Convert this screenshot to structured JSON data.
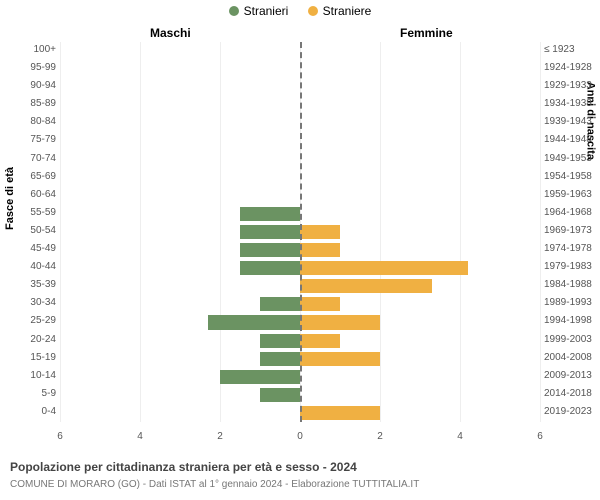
{
  "chart": {
    "type": "population-pyramid",
    "background_color": "#ffffff",
    "grid_color": "#eeeeee",
    "center_line_color": "#777777",
    "label_fontsize": 10,
    "axis_title_fontsize": 11
  },
  "legend": {
    "items": [
      {
        "label": "Stranieri",
        "color": "#6b9362"
      },
      {
        "label": "Straniere",
        "color": "#f0b042"
      }
    ]
  },
  "titles": {
    "left_side": "Maschi",
    "right_side": "Femmine",
    "y_left": "Fasce di età",
    "y_right": "Anni di nascita"
  },
  "axis": {
    "xmax": 6,
    "xtick_step": 2,
    "xticks_left": [
      6,
      4,
      2,
      0
    ],
    "xticks_right": [
      0,
      2,
      4,
      6
    ]
  },
  "rows": [
    {
      "age": "100+",
      "birth": "≤ 1923",
      "male": 0,
      "female": 0
    },
    {
      "age": "95-99",
      "birth": "1924-1928",
      "male": 0,
      "female": 0
    },
    {
      "age": "90-94",
      "birth": "1929-1933",
      "male": 0,
      "female": 0
    },
    {
      "age": "85-89",
      "birth": "1934-1938",
      "male": 0,
      "female": 0
    },
    {
      "age": "80-84",
      "birth": "1939-1943",
      "male": 0,
      "female": 0
    },
    {
      "age": "75-79",
      "birth": "1944-1948",
      "male": 0,
      "female": 0
    },
    {
      "age": "70-74",
      "birth": "1949-1953",
      "male": 0,
      "female": 0
    },
    {
      "age": "65-69",
      "birth": "1954-1958",
      "male": 0,
      "female": 0
    },
    {
      "age": "60-64",
      "birth": "1959-1963",
      "male": 0,
      "female": 0
    },
    {
      "age": "55-59",
      "birth": "1964-1968",
      "male": 1.5,
      "female": 0
    },
    {
      "age": "50-54",
      "birth": "1969-1973",
      "male": 1.5,
      "female": 1
    },
    {
      "age": "45-49",
      "birth": "1974-1978",
      "male": 1.5,
      "female": 1
    },
    {
      "age": "40-44",
      "birth": "1979-1983",
      "male": 1.5,
      "female": 4.2
    },
    {
      "age": "35-39",
      "birth": "1984-1988",
      "male": 0,
      "female": 3.3
    },
    {
      "age": "30-34",
      "birth": "1989-1993",
      "male": 1,
      "female": 1
    },
    {
      "age": "25-29",
      "birth": "1994-1998",
      "male": 2.3,
      "female": 2
    },
    {
      "age": "20-24",
      "birth": "1999-2003",
      "male": 1,
      "female": 1
    },
    {
      "age": "15-19",
      "birth": "2004-2008",
      "male": 1,
      "female": 2
    },
    {
      "age": "10-14",
      "birth": "2009-2013",
      "male": 2,
      "female": 0
    },
    {
      "age": "5-9",
      "birth": "2014-2018",
      "male": 1,
      "female": 0
    },
    {
      "age": "0-4",
      "birth": "2019-2023",
      "male": 0,
      "female": 2
    }
  ],
  "footer": {
    "title": "Popolazione per cittadinanza straniera per età e sesso - 2024",
    "sub": "COMUNE DI MORARO (GO) - Dati ISTAT al 1° gennaio 2024 - Elaborazione TUTTITALIA.IT"
  }
}
